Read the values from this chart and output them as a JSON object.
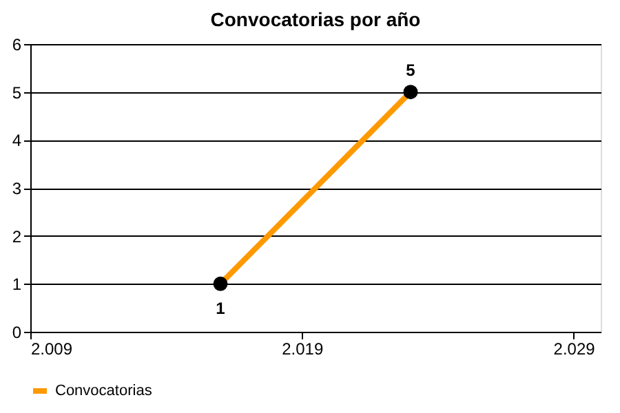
{
  "chart_data": {
    "type": "line",
    "title": "Convocatorias por año",
    "x": [
      2016,
      2023
    ],
    "series": [
      {
        "name": "Convocatorias",
        "color": "#ff9900",
        "values": [
          1,
          5
        ]
      }
    ],
    "xlim": [
      2009,
      2030
    ],
    "xticks": [
      {
        "value": 2009,
        "label": "2.009"
      },
      {
        "value": 2019,
        "label": "2.019"
      },
      {
        "value": 2029,
        "label": "2.029"
      }
    ],
    "ylim": [
      0,
      6
    ],
    "yticks": [
      0,
      1,
      2,
      3,
      4,
      5,
      6
    ],
    "grid": "y",
    "legend": "bottom",
    "marker": "circle",
    "line_style": "solid",
    "data_labels": true
  }
}
